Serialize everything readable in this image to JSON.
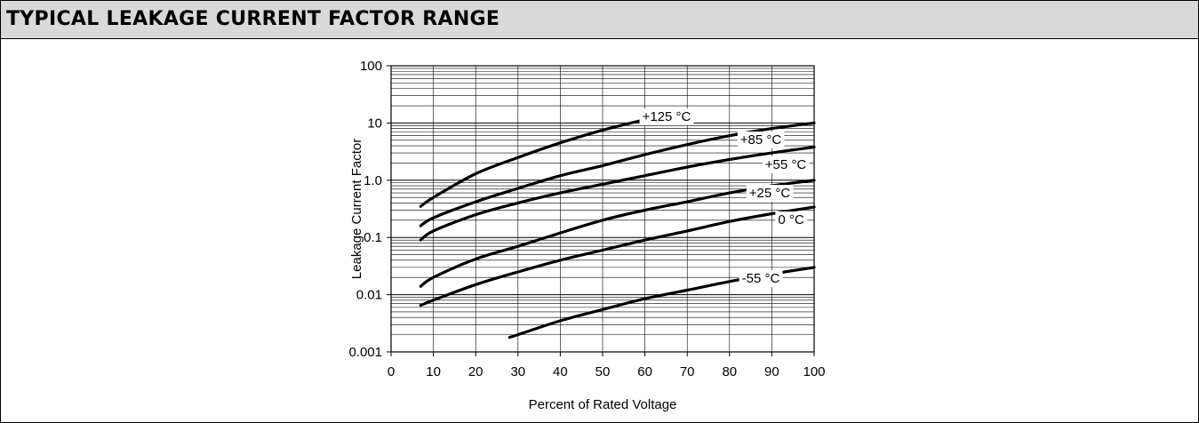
{
  "header": {
    "title": "TYPICAL LEAKAGE CURRENT FACTOR RANGE"
  },
  "chart_data": {
    "type": "line",
    "title": "",
    "xlabel": "Percent of Rated Voltage",
    "ylabel": "Leakage Current Factor",
    "xlim": [
      0,
      100
    ],
    "ylim": [
      0.001,
      100
    ],
    "yscale": "log",
    "grid": true,
    "x_ticks": [
      "0",
      "10",
      "20",
      "30",
      "40",
      "50",
      "60",
      "70",
      "80",
      "90",
      "100"
    ],
    "y_ticks": [
      "100",
      "10",
      "1.0",
      "0.1",
      "0.01",
      "0.001"
    ],
    "series": [
      {
        "name": "+125 °C",
        "x": [
          7,
          10,
          20,
          30,
          40,
          50,
          60,
          67
        ],
        "y": [
          0.35,
          0.5,
          1.3,
          2.5,
          4.5,
          7.5,
          11.5,
          16
        ]
      },
      {
        "name": "+85 °C",
        "x": [
          7,
          10,
          20,
          30,
          40,
          50,
          60,
          70,
          80,
          90,
          100
        ],
        "y": [
          0.16,
          0.22,
          0.42,
          0.72,
          1.2,
          1.8,
          2.8,
          4.2,
          6,
          8,
          10
        ]
      },
      {
        "name": "+55 °C",
        "x": [
          7,
          10,
          20,
          30,
          40,
          50,
          60,
          70,
          80,
          90,
          100
        ],
        "y": [
          0.09,
          0.13,
          0.25,
          0.4,
          0.6,
          0.85,
          1.2,
          1.7,
          2.3,
          3,
          3.8
        ]
      },
      {
        "name": "+25 °C",
        "x": [
          7,
          10,
          20,
          30,
          40,
          50,
          60,
          70,
          80,
          90,
          100
        ],
        "y": [
          0.014,
          0.02,
          0.042,
          0.07,
          0.12,
          0.2,
          0.3,
          0.42,
          0.6,
          0.8,
          1.0
        ]
      },
      {
        "name": "0 °C",
        "x": [
          7,
          10,
          20,
          30,
          40,
          50,
          60,
          70,
          80,
          90,
          100
        ],
        "y": [
          0.0065,
          0.008,
          0.015,
          0.025,
          0.04,
          0.06,
          0.09,
          0.13,
          0.19,
          0.26,
          0.34
        ]
      },
      {
        "name": "-55 °C",
        "x": [
          28,
          30,
          40,
          50,
          60,
          70,
          80,
          90,
          100
        ],
        "y": [
          0.0018,
          0.002,
          0.0035,
          0.0055,
          0.0085,
          0.012,
          0.017,
          0.023,
          0.03
        ]
      }
    ]
  }
}
